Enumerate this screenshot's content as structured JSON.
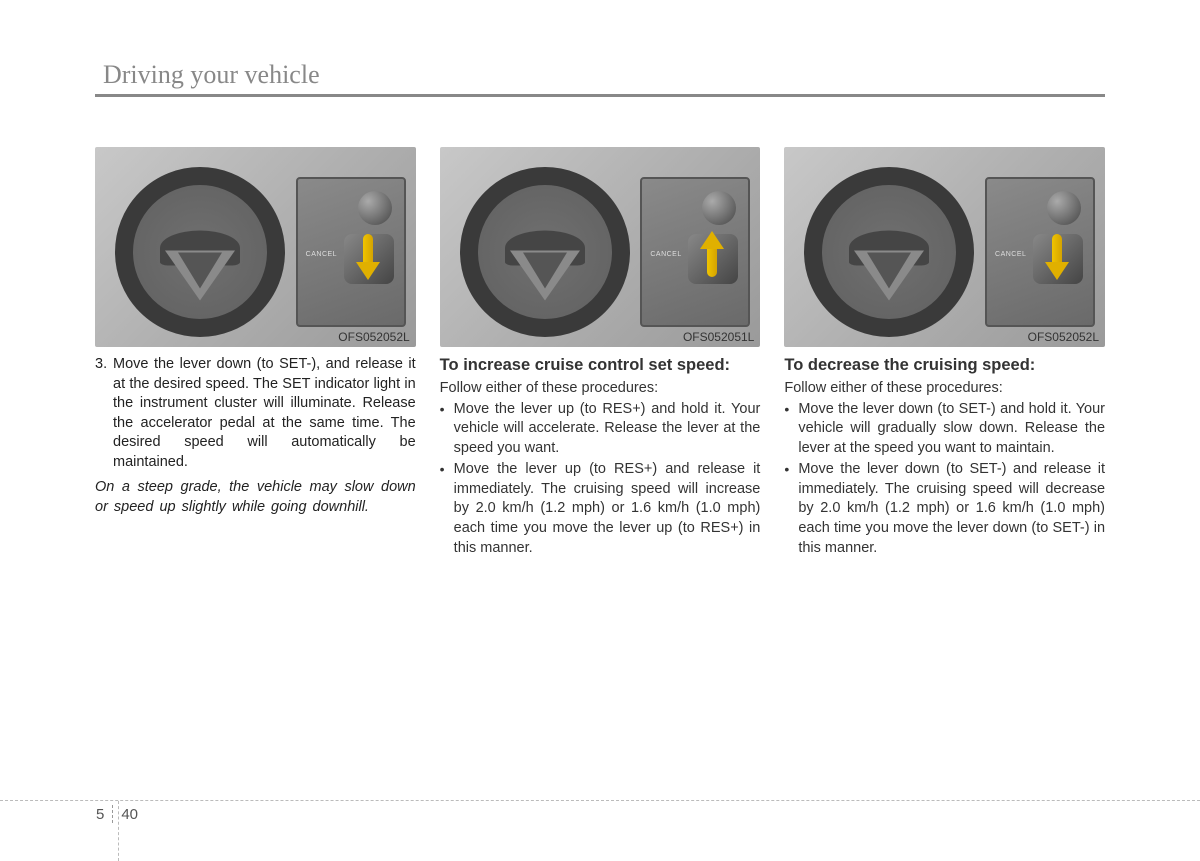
{
  "header": {
    "section_title": "Driving your vehicle"
  },
  "figures": {
    "codes": [
      "OFS052052L",
      "OFS052051L",
      "OFS052052L"
    ],
    "arrow_color": "#e0b000",
    "ctrl_label": "CANCEL"
  },
  "col1": {
    "step_number": "3.",
    "step_text": "Move the lever down (to SET-), and release it at the desired speed. The SET indicator light in the instrument cluster will illuminate. Release the accelerator pedal at the same time. The desired speed will automatically be maintained.",
    "note": "On a steep grade, the vehicle may slow down or speed up slightly while going downhill."
  },
  "col2": {
    "heading": "To increase cruise control set speed:",
    "lead": "Follow either of these procedures:",
    "bullets": [
      "Move the lever up (to RES+) and hold it. Your vehicle will accelerate. Release the lever at the speed you want.",
      "Move the lever up (to RES+) and release it immediately. The cruising speed will increase by 2.0 km/h (1.2 mph) or 1.6 km/h (1.0 mph) each time you move the lever up (to RES+) in this manner."
    ]
  },
  "col3": {
    "heading": "To decrease the cruising speed:",
    "lead": "Follow either of these procedures:",
    "bullets": [
      "Move the lever down (to SET-) and hold it. Your vehicle will gradually slow down. Release the lever at the speed you want to maintain.",
      "Move the lever down (to SET-) and release it immediately. The cruising speed will decrease by 2.0 km/h (1.2 mph) or 1.6 km/h (1.0 mph) each time you move the lever down (to SET-) in this manner."
    ]
  },
  "footer": {
    "chapter": "5",
    "page": "40"
  },
  "colors": {
    "text": "#222222",
    "header_text": "#888888",
    "rule": "#888888",
    "figure_bg_from": "#c8c8c8",
    "figure_bg_to": "#9a9a9a"
  },
  "typography": {
    "header_fontsize_pt": 20,
    "body_fontsize_pt": 11,
    "subhead_fontsize_pt": 12
  }
}
